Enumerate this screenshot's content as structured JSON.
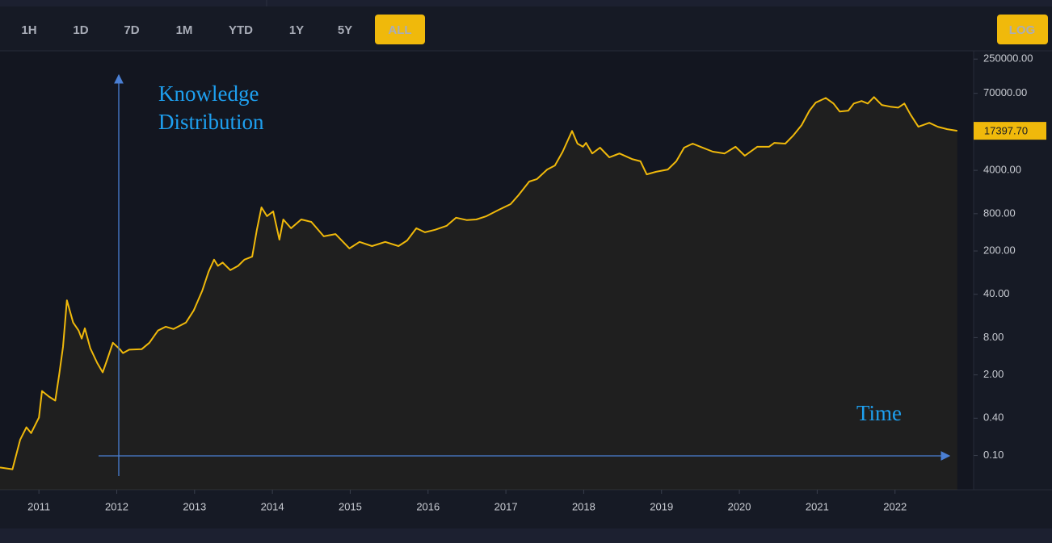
{
  "chart_data": {
    "type": "line",
    "range_buttons": [
      "1H",
      "1D",
      "7D",
      "1M",
      "YTD",
      "1Y",
      "5Y",
      "ALL"
    ],
    "active_range": "ALL",
    "scale_button": "LOG",
    "log_scale": true,
    "color": "#f0b90b",
    "x": [
      2010.5,
      2010.66,
      2010.76,
      2010.84,
      2010.9,
      2011.0,
      2011.04,
      2011.13,
      2011.21,
      2011.26,
      2011.31,
      2011.36,
      2011.44,
      2011.51,
      2011.55,
      2011.59,
      2011.66,
      2011.75,
      2011.82,
      2011.88,
      2011.95,
      2012.04,
      2012.08,
      2012.16,
      2012.32,
      2012.42,
      2012.53,
      2012.63,
      2012.73,
      2012.89,
      2012.99,
      2013.1,
      2013.18,
      2013.25,
      2013.3,
      2013.36,
      2013.46,
      2013.56,
      2013.64,
      2013.74,
      2013.8,
      2013.86,
      2013.93,
      2014.01,
      2014.09,
      2014.14,
      2014.24,
      2014.37,
      2014.5,
      2014.66,
      2014.81,
      2014.99,
      2015.12,
      2015.28,
      2015.45,
      2015.62,
      2015.73,
      2015.85,
      2015.96,
      2016.09,
      2016.24,
      2016.36,
      2016.5,
      2016.62,
      2016.75,
      2016.91,
      2017.06,
      2017.16,
      2017.3,
      2017.4,
      2017.53,
      2017.63,
      2017.73,
      2017.85,
      2017.92,
      2017.99,
      2018.03,
      2018.11,
      2018.21,
      2018.33,
      2018.46,
      2018.62,
      2018.73,
      2018.81,
      2018.93,
      2019.08,
      2019.19,
      2019.29,
      2019.4,
      2019.5,
      2019.66,
      2019.81,
      2019.95,
      2020.07,
      2020.23,
      2020.38,
      2020.45,
      2020.59,
      2020.69,
      2020.8,
      2020.9,
      2020.98,
      2021.11,
      2021.21,
      2021.29,
      2021.4,
      2021.47,
      2021.57,
      2021.65,
      2021.73,
      2021.83,
      2021.94,
      2022.04,
      2022.12,
      2022.2,
      2022.3,
      2022.44,
      2022.55,
      2022.67,
      2022.8
    ],
    "values": [
      0.064,
      0.06,
      0.18,
      0.285,
      0.23,
      0.41,
      1.1,
      0.89,
      0.77,
      2.0,
      5.7,
      32,
      14,
      10.4,
      7.7,
      11.3,
      5.4,
      3.1,
      2.2,
      3.6,
      6.6,
      5.2,
      4.5,
      5.1,
      5.2,
      6.6,
      10.4,
      12,
      11,
      14,
      22,
      46,
      92,
      145,
      115,
      130,
      98,
      115,
      145,
      162,
      440,
      1010,
      730,
      870,
      305,
      645,
      465,
      645,
      590,
      345,
      375,
      220,
      280,
      240,
      280,
      240,
      295,
      465,
      400,
      440,
      510,
      690,
      630,
      645,
      730,
      925,
      1140,
      1580,
      2640,
      2900,
      4130,
      4800,
      8000,
      17300,
      10800,
      9600,
      11100,
      7500,
      9300,
      6500,
      7500,
      6100,
      5600,
      3450,
      3800,
      4130,
      5600,
      9300,
      10800,
      9600,
      8000,
      7500,
      9600,
      6900,
      9600,
      9600,
      11100,
      10800,
      14500,
      21500,
      36800,
      49600,
      59000,
      48000,
      35500,
      36800,
      48000,
      52600,
      48000,
      61000,
      45400,
      42700,
      41200,
      48000,
      31600,
      20200,
      23400,
      20200,
      18500,
      17400
    ],
    "xlim": [
      2010.5,
      2023.01
    ],
    "xticks": [
      2011,
      2012,
      2013,
      2014,
      2015,
      2016,
      2017,
      2018,
      2019,
      2020,
      2021,
      2022
    ],
    "ylim": [
      0.028,
      320000
    ],
    "yticks": [
      {
        "value": 0.1,
        "label": "0.10"
      },
      {
        "value": 0.4,
        "label": "0.40"
      },
      {
        "value": 2,
        "label": "2.00"
      },
      {
        "value": 8,
        "label": "8.00"
      },
      {
        "value": 40,
        "label": "40.00"
      },
      {
        "value": 200,
        "label": "200.00"
      },
      {
        "value": 800,
        "label": "800.00"
      },
      {
        "value": 4000,
        "label": "4000.00"
      },
      {
        "value": 70000,
        "label": "70000.00"
      },
      {
        "value": 250000,
        "label": "250000.00"
      }
    ],
    "price_marker": {
      "value": 17397.7,
      "label": "17397.70"
    },
    "y_annotation": [
      "Knowledge",
      "Distribution"
    ],
    "x_annotation": "Time"
  }
}
